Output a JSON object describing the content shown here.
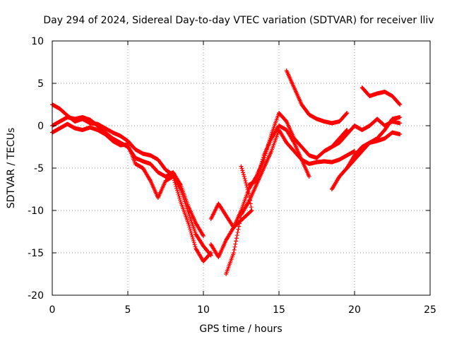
{
  "chart_data": {
    "type": "scatter",
    "title": "Day 294 of 2024, Sidereal Day-to-day VTEC variation (SDTVAR) for receiver lliv",
    "xlabel": "GPS time / hours",
    "ylabel": "SDTVAR / TECUs",
    "xlim": [
      0,
      25
    ],
    "ylim": [
      -20,
      10
    ],
    "xticks": [
      0,
      5,
      10,
      15,
      20,
      25
    ],
    "yticks": [
      -20,
      -15,
      -10,
      -5,
      0,
      5,
      10
    ],
    "grid": true,
    "marker": "+",
    "color": "#ff0000",
    "series": [
      {
        "x": [
          0.0,
          0.5,
          1.0,
          1.5,
          2.0,
          2.5,
          3.0,
          3.5,
          4.0,
          4.5,
          5.0,
          5.5,
          6.0,
          6.5,
          7.0,
          7.5,
          8.0,
          8.5,
          9.0,
          9.5,
          10.0,
          10.5
        ],
        "y": [
          2.5,
          2.0,
          1.2,
          0.5,
          0.8,
          0.3,
          0.2,
          -0.3,
          -0.8,
          -1.2,
          -1.8,
          -2.8,
          -3.3,
          -3.5,
          -4.0,
          -5.2,
          -5.8,
          -7.5,
          -10.2,
          -12.8,
          -14.2,
          -15.3
        ]
      },
      {
        "x": [
          0.0,
          0.5,
          1.0,
          1.5,
          2.0,
          2.5,
          3.0,
          3.5,
          4.0,
          4.5,
          5.0,
          5.5,
          6.0,
          6.5,
          7.0,
          7.5,
          8.0,
          8.5,
          9.0,
          9.5,
          10.0
        ],
        "y": [
          0.0,
          0.5,
          1.0,
          0.8,
          1.0,
          0.7,
          0.0,
          -0.8,
          -1.5,
          -2.0,
          -2.5,
          -3.8,
          -4.2,
          -4.5,
          -5.5,
          -6.0,
          -5.5,
          -7.0,
          -9.5,
          -11.5,
          -13.0
        ]
      },
      {
        "x": [
          0.0,
          0.5,
          1.0,
          1.5,
          2.0,
          2.5,
          3.0,
          3.5,
          4.0,
          4.5,
          5.0,
          5.5,
          6.0,
          6.5,
          7.0,
          7.5,
          8.0,
          8.5,
          9.0,
          9.5,
          10.0,
          10.5
        ],
        "y": [
          -0.8,
          -0.3,
          0.2,
          -0.3,
          -0.5,
          -0.2,
          -0.5,
          -1.0,
          -1.8,
          -2.3,
          -2.2,
          -4.5,
          -5.0,
          -6.5,
          -8.5,
          -6.5,
          -6.0,
          -9.0,
          -11.5,
          -14.5,
          -16.0,
          -15.0
        ]
      },
      {
        "x": [
          10.5,
          11.0,
          11.5,
          12.0,
          12.5,
          13.0,
          13.5,
          14.0,
          14.5,
          15.0,
          15.5,
          16.0,
          16.5,
          17.0,
          17.5,
          18.0,
          18.5,
          19.0,
          19.5
        ],
        "y": [
          -14.0,
          -15.5,
          -13.5,
          -12.0,
          -10.0,
          -7.5,
          -6.0,
          -4.0,
          -1.0,
          1.5,
          0.5,
          -1.5,
          -2.5,
          -3.5,
          -3.8,
          -3.0,
          -2.5,
          -1.5,
          -0.5
        ]
      },
      {
        "x": [
          11.5,
          12.0,
          12.5,
          13.0,
          13.5,
          14.0,
          14.5,
          15.0,
          15.5,
          16.0,
          16.5,
          17.0,
          17.5,
          18.0,
          18.5,
          19.0,
          19.5,
          20.0
        ],
        "y": [
          -17.5,
          -15.0,
          -10.5,
          -9.0,
          -7.0,
          -5.0,
          -3.0,
          -0.5,
          -2.0,
          -3.0,
          -4.0,
          -4.5,
          -4.3,
          -4.2,
          -4.3,
          -4.0,
          -3.5,
          -3.0
        ]
      },
      {
        "x": [
          13.0,
          13.5,
          14.0,
          14.5,
          15.0,
          15.5,
          16.0,
          16.5,
          17.0
        ],
        "y": [
          -7.0,
          -6.5,
          -3.5,
          -1.5,
          0.0,
          -0.5,
          -2.0,
          -4.0,
          -6.0
        ]
      },
      {
        "x": [
          15.5,
          16.0,
          16.5,
          17.0,
          17.5,
          18.0,
          18.5,
          19.0,
          19.5
        ],
        "y": [
          6.5,
          4.5,
          2.5,
          1.3,
          0.8,
          0.5,
          0.3,
          0.5,
          1.5
        ]
      },
      {
        "x": [
          18.5,
          19.0,
          19.5,
          20.0,
          20.5,
          21.0,
          21.5,
          22.0,
          22.5,
          23.0
        ],
        "y": [
          -7.5,
          -6.0,
          -5.0,
          -4.0,
          -3.0,
          -2.0,
          -1.8,
          -1.5,
          -0.8,
          -1.0
        ]
      },
      {
        "x": [
          18.0,
          18.5,
          19.0,
          19.5,
          20.0,
          20.5,
          21.0,
          21.5,
          22.0,
          22.5,
          23.0
        ],
        "y": [
          -3.0,
          -2.5,
          -2.0,
          -1.0,
          0.0,
          -0.5,
          0.0,
          0.8,
          0.0,
          0.5,
          0.3
        ]
      },
      {
        "x": [
          20.5,
          21.0,
          21.5,
          22.0,
          22.5,
          23.0
        ],
        "y": [
          4.5,
          3.5,
          3.8,
          4.0,
          3.5,
          2.5
        ]
      },
      {
        "x": [
          19.5,
          20.0,
          20.5,
          21.0,
          21.5,
          22.0,
          22.5,
          23.0
        ],
        "y": [
          -5.0,
          -3.5,
          -2.5,
          -2.0,
          -1.5,
          -0.5,
          0.8,
          1.0
        ]
      },
      {
        "x": [
          12.5,
          12.7,
          13.0,
          13.2,
          12.0,
          11.0,
          10.5
        ],
        "y": [
          -4.8,
          -6.0,
          -8.0,
          -10.0,
          -12.0,
          -9.2,
          -11.0
        ]
      }
    ]
  }
}
